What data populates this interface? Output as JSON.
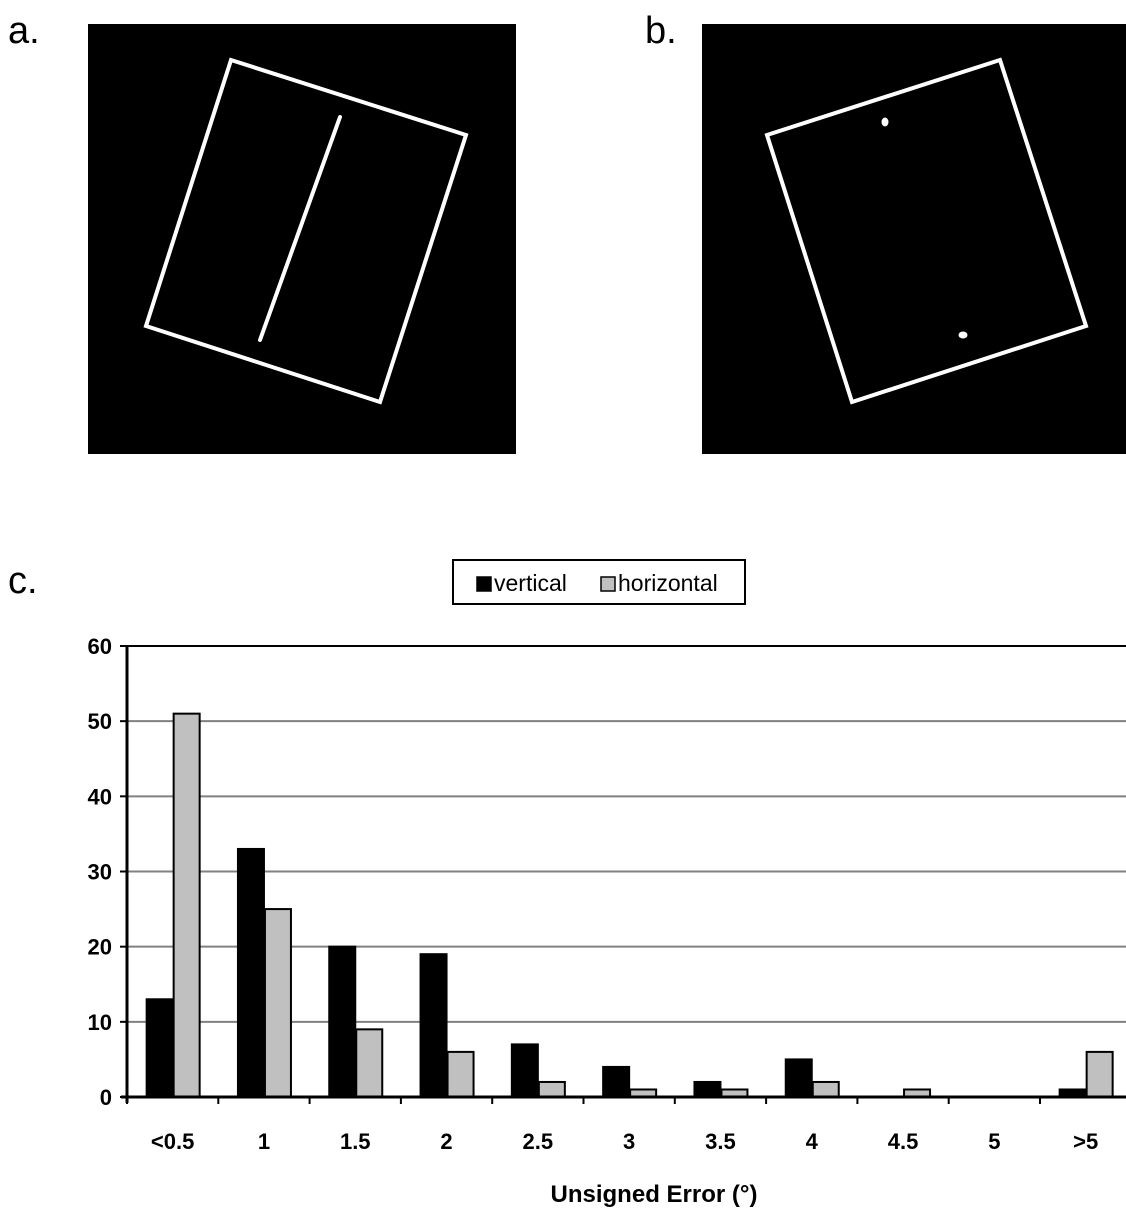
{
  "panels": {
    "a_label": "a.",
    "b_label": "b.",
    "c_label": "c."
  },
  "stimuli": {
    "a": {
      "description_icon": "rotated-frame-with-line",
      "frame_tilt_deg": -22
    },
    "b": {
      "description_icon": "rotated-frame-with-two-dots",
      "frame_tilt_deg": 22
    }
  },
  "colors": {
    "vertical": "#000000",
    "horizontal": "#c0c0c0",
    "gridline": "#808080",
    "stimulus_bg": "#000000",
    "stimulus_fg": "#ffffff"
  },
  "chart_data": {
    "type": "bar",
    "categories": [
      "<0.5",
      "1",
      "1.5",
      "2",
      "2.5",
      "3",
      "3.5",
      "4",
      "4.5",
      "5",
      ">5"
    ],
    "series": [
      {
        "name": "vertical",
        "values": [
          13,
          33,
          20,
          19,
          7,
          4,
          2,
          5,
          0,
          0,
          1
        ]
      },
      {
        "name": "horizontal",
        "values": [
          51,
          25,
          9,
          6,
          2,
          1,
          1,
          2,
          1,
          0,
          6
        ]
      }
    ],
    "xlabel": "Unsigned Error (°)",
    "ylabel": "",
    "ylim": [
      0,
      60
    ],
    "yticks": [
      0,
      10,
      20,
      30,
      40,
      50,
      60
    ],
    "grid": true,
    "legend": "top-center"
  }
}
